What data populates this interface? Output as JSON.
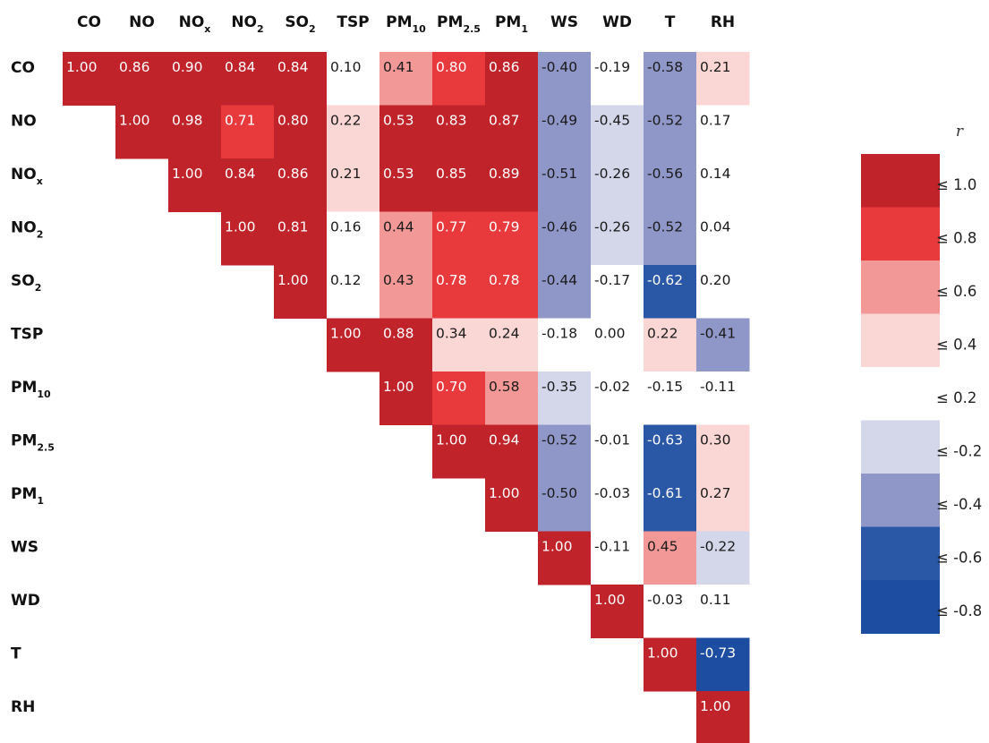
{
  "chart_data": {
    "type": "heatmap",
    "title": "",
    "variables": [
      {
        "base": "CO",
        "sub": ""
      },
      {
        "base": "NO",
        "sub": ""
      },
      {
        "base": "NO",
        "sub": "x"
      },
      {
        "base": "NO",
        "sub": "2"
      },
      {
        "base": "SO",
        "sub": "2"
      },
      {
        "base": "TSP",
        "sub": ""
      },
      {
        "base": "PM",
        "sub": "10"
      },
      {
        "base": "PM",
        "sub": "2.5"
      },
      {
        "base": "PM",
        "sub": "1"
      },
      {
        "base": "WS",
        "sub": ""
      },
      {
        "base": "WD",
        "sub": ""
      },
      {
        "base": "T",
        "sub": ""
      },
      {
        "base": "RH",
        "sub": ""
      }
    ],
    "matrix": [
      [
        "1.00",
        "0.86",
        "0.90",
        "0.84",
        "0.84",
        "0.10",
        "0.41",
        "0.80",
        "0.86",
        "-0.40",
        "-0.19",
        "-0.58",
        "0.21"
      ],
      [
        "1.00",
        "0.98",
        "0.71",
        "0.80",
        "0.22",
        "0.53",
        "0.83",
        "0.87",
        "-0.49",
        "-0.45",
        "-0.52",
        "0.17"
      ],
      [
        "1.00",
        "0.84",
        "0.86",
        "0.21",
        "0.53",
        "0.85",
        "0.89",
        "-0.51",
        "-0.26",
        "-0.56",
        "0.14"
      ],
      [
        "1.00",
        "0.81",
        "0.16",
        "0.44",
        "0.77",
        "0.79",
        "-0.46",
        "-0.26",
        "-0.52",
        "0.04"
      ],
      [
        "1.00",
        "0.12",
        "0.43",
        "0.78",
        "0.78",
        "-0.44",
        "-0.17",
        "-0.62",
        "0.20"
      ],
      [
        "1.00",
        "0.88",
        "0.34",
        "0.24",
        "-0.18",
        "0.00",
        "0.22",
        "-0.41"
      ],
      [
        "1.00",
        "0.70",
        "0.58",
        "-0.35",
        "-0.02",
        "-0.15",
        "-0.11"
      ],
      [
        "1.00",
        "0.94",
        "-0.52",
        "-0.01",
        "-0.63",
        "0.30"
      ],
      [
        "1.00",
        "-0.50",
        "-0.03",
        "-0.61",
        "0.27"
      ],
      [
        "1.00",
        "-0.11",
        "0.45",
        "-0.22"
      ],
      [
        "1.00",
        "-0.03",
        "0.11"
      ],
      [
        "1.00",
        "-0.73"
      ],
      [
        "1.00"
      ]
    ],
    "colors": {
      "dark_red": "#c1232b",
      "red": "#e8393d",
      "mid_red": "#f29897",
      "light_red": "#fad6d4",
      "white": "#ffffff",
      "light_blue": "#d4d6ea",
      "mid_blue": "#8f96c8",
      "blue": "#2b58a6",
      "dark_blue": "#1d4da1"
    },
    "cell_colors": [
      [
        "dark_red",
        "dark_red",
        "dark_red",
        "dark_red",
        "dark_red",
        "white",
        "mid_red",
        "red",
        "dark_red",
        "mid_blue",
        "white",
        "mid_blue",
        "light_red"
      ],
      [
        "dark_red",
        "dark_red",
        "red",
        "dark_red",
        "light_red",
        "dark_red",
        "dark_red",
        "dark_red",
        "mid_blue",
        "light_blue",
        "mid_blue",
        "white"
      ],
      [
        "dark_red",
        "dark_red",
        "dark_red",
        "light_red",
        "dark_red",
        "dark_red",
        "dark_red",
        "mid_blue",
        "light_blue",
        "mid_blue",
        "white"
      ],
      [
        "dark_red",
        "dark_red",
        "white",
        "mid_red",
        "red",
        "red",
        "mid_blue",
        "light_blue",
        "mid_blue",
        "white"
      ],
      [
        "dark_red",
        "white",
        "mid_red",
        "red",
        "red",
        "mid_blue",
        "white",
        "blue",
        "white"
      ],
      [
        "dark_red",
        "dark_red",
        "light_red",
        "light_red",
        "white",
        "white",
        "light_red",
        "mid_blue"
      ],
      [
        "dark_red",
        "red",
        "mid_red",
        "light_blue",
        "white",
        "white",
        "white"
      ],
      [
        "dark_red",
        "dark_red",
        "mid_blue",
        "white",
        "blue",
        "light_red"
      ],
      [
        "dark_red",
        "mid_blue",
        "white",
        "blue",
        "light_red"
      ],
      [
        "dark_red",
        "white",
        "mid_red",
        "light_blue"
      ],
      [
        "dark_red",
        "white",
        "white"
      ],
      [
        "dark_red",
        "dark_blue"
      ],
      [
        "dark_red"
      ]
    ],
    "legend": {
      "title": "r",
      "placement": "right",
      "entries": [
        {
          "label": "≤ 1.0",
          "color": "dark_red"
        },
        {
          "label": "≤ 0.8",
          "color": "red"
        },
        {
          "label": "≤ 0.6",
          "color": "mid_red"
        },
        {
          "label": "≤ 0.4",
          "color": "light_red"
        },
        {
          "label": "≤ 0.2",
          "color": "white"
        },
        {
          "label": "≤ -0.2",
          "color": "light_blue"
        },
        {
          "label": "≤ -0.4",
          "color": "mid_blue"
        },
        {
          "label": "≤ -0.6",
          "color": "blue"
        },
        {
          "label": "≤ -0.8",
          "color": "dark_blue"
        }
      ]
    }
  }
}
